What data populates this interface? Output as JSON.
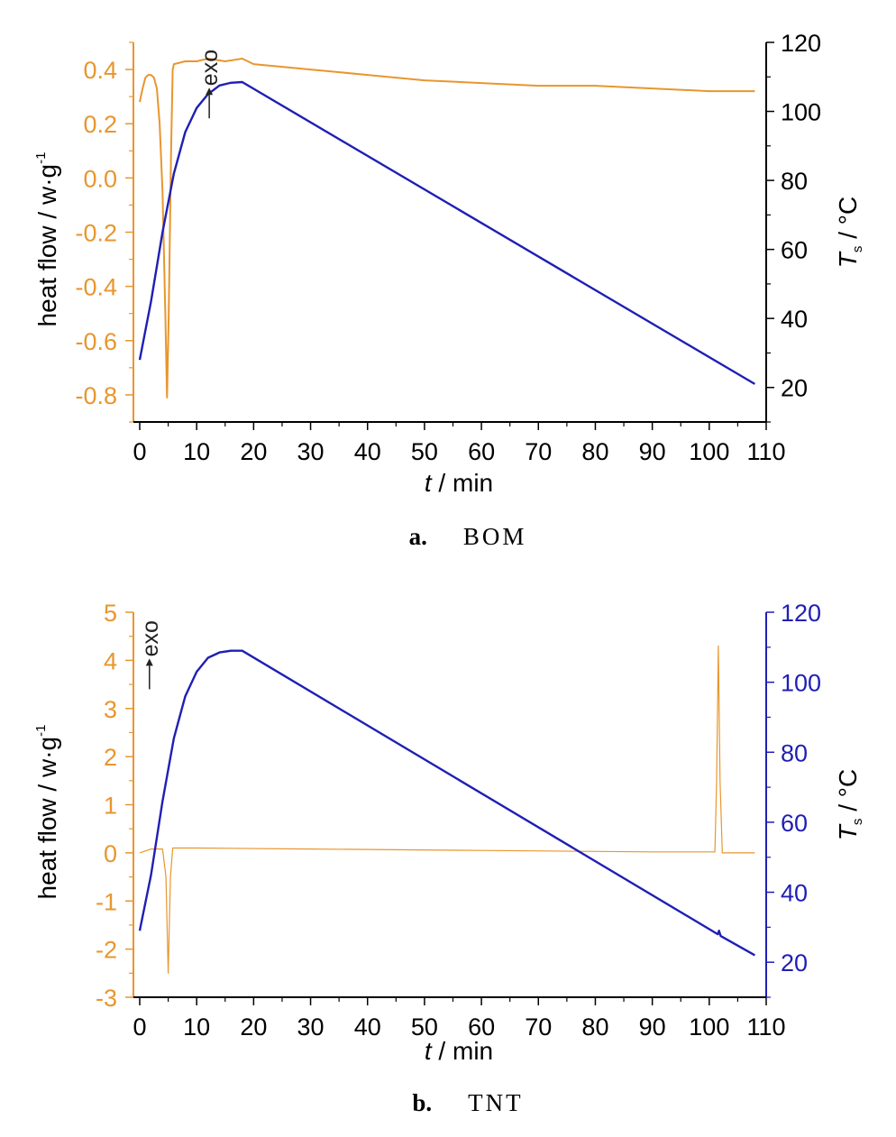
{
  "colors": {
    "heat_flow": "#e8962e",
    "temperature": "#1f1fb4",
    "axis": "#000000",
    "text": "#000000"
  },
  "chart_data": [
    {
      "type": "line",
      "caption_label": "a.",
      "caption_name": "BOM",
      "xlabel_italic": "t",
      "xlabel_rest": " / min",
      "ylabel_left": "heat flow / w·g",
      "ylabel_left_sup": "-1",
      "ylabel_right_italic": "T",
      "ylabel_right_sub": "s",
      "ylabel_right_rest": " / °C",
      "right_axis_colored": false,
      "xlim": [
        0,
        110
      ],
      "ylim_left": [
        -0.9,
        0.5
      ],
      "ylim_right": [
        10,
        120
      ],
      "x_ticks": [
        0,
        10,
        20,
        30,
        40,
        50,
        60,
        70,
        80,
        90,
        100,
        110
      ],
      "y_left_ticks": [
        -0.8,
        -0.6,
        -0.4,
        -0.2,
        0.0,
        0.2,
        0.4
      ],
      "y_left_tick_labels": [
        "-0.8",
        "-0.6",
        "-0.4",
        "-0.2",
        "0.0",
        "0.2",
        "0.4"
      ],
      "y_right_ticks": [
        20,
        40,
        60,
        80,
        100,
        120
      ],
      "annotation": {
        "text": "exo",
        "x": 13,
        "y": 0.22
      },
      "series": [
        {
          "axis": "left",
          "points": [
            [
              0,
              0.28
            ],
            [
              0.5,
              0.33
            ],
            [
              1,
              0.37
            ],
            [
              1.5,
              0.38
            ],
            [
              2,
              0.38
            ],
            [
              2.5,
              0.37
            ],
            [
              3,
              0.33
            ],
            [
              3.5,
              0.2
            ],
            [
              4,
              -0.05
            ],
            [
              4.5,
              -0.5
            ],
            [
              4.8,
              -0.81
            ],
            [
              5.1,
              -0.5
            ],
            [
              5.5,
              0.1
            ],
            [
              5.8,
              0.4
            ],
            [
              6,
              0.42
            ],
            [
              8,
              0.43
            ],
            [
              10,
              0.43
            ],
            [
              12,
              0.44
            ],
            [
              15,
              0.43
            ],
            [
              18,
              0.44
            ],
            [
              20,
              0.42
            ],
            [
              25,
              0.41
            ],
            [
              30,
              0.4
            ],
            [
              40,
              0.38
            ],
            [
              50,
              0.36
            ],
            [
              60,
              0.35
            ],
            [
              70,
              0.34
            ],
            [
              80,
              0.34
            ],
            [
              90,
              0.33
            ],
            [
              100,
              0.32
            ],
            [
              108,
              0.32
            ]
          ]
        },
        {
          "axis": "right",
          "points": [
            [
              0,
              28
            ],
            [
              2,
              45
            ],
            [
              4,
              65
            ],
            [
              6,
              82
            ],
            [
              8,
              94
            ],
            [
              10,
              101
            ],
            [
              12,
              105
            ],
            [
              14,
              107.5
            ],
            [
              16,
              108.3
            ],
            [
              18,
              108.5
            ],
            [
              108,
              21
            ]
          ]
        }
      ]
    },
    {
      "type": "line",
      "caption_label": "b.",
      "caption_name": "TNT",
      "xlabel_italic": "t",
      "xlabel_rest": " / min",
      "ylabel_left": "heat flow / w·g",
      "ylabel_left_sup": "-1",
      "ylabel_right_italic": "T",
      "ylabel_right_sub": "s",
      "ylabel_right_rest": " / °C",
      "right_axis_colored": true,
      "xlim": [
        0,
        110
      ],
      "ylim_left": [
        -3,
        5
      ],
      "ylim_right": [
        10,
        120
      ],
      "x_ticks": [
        0,
        10,
        20,
        30,
        40,
        50,
        60,
        70,
        80,
        90,
        100,
        110
      ],
      "y_left_ticks": [
        -3,
        -2,
        -1,
        0,
        1,
        2,
        3,
        4,
        5
      ],
      "y_left_tick_labels": [
        "-3",
        "-2",
        "-1",
        "0",
        "1",
        "2",
        "3",
        "4",
        "5"
      ],
      "y_right_ticks": [
        20,
        40,
        60,
        80,
        100,
        120
      ],
      "annotation": {
        "text": "exo",
        "x": 2.5,
        "y": 3.4
      },
      "series": [
        {
          "axis": "left",
          "points": [
            [
              0,
              0.0
            ],
            [
              2,
              0.08
            ],
            [
              4,
              0.08
            ],
            [
              4.6,
              -0.5
            ],
            [
              5,
              -2.5
            ],
            [
              5.4,
              -0.5
            ],
            [
              5.8,
              0.1
            ],
            [
              10,
              0.1
            ],
            [
              30,
              0.08
            ],
            [
              60,
              0.05
            ],
            [
              90,
              0.02
            ],
            [
              101,
              0.02
            ],
            [
              101.3,
              1.5
            ],
            [
              101.6,
              4.3
            ],
            [
              101.9,
              1.5
            ],
            [
              102.3,
              0.0
            ],
            [
              108,
              0.0
            ]
          ]
        },
        {
          "axis": "right",
          "points": [
            [
              0,
              29
            ],
            [
              2,
              45
            ],
            [
              4,
              66
            ],
            [
              6,
              84
            ],
            [
              8,
              96
            ],
            [
              10,
              103
            ],
            [
              12,
              107
            ],
            [
              14,
              108.5
            ],
            [
              16,
              109
            ],
            [
              18,
              109
            ],
            [
              101.5,
              28
            ],
            [
              101.7,
              29
            ],
            [
              102,
              27.5
            ],
            [
              108,
              22
            ]
          ]
        }
      ]
    }
  ]
}
